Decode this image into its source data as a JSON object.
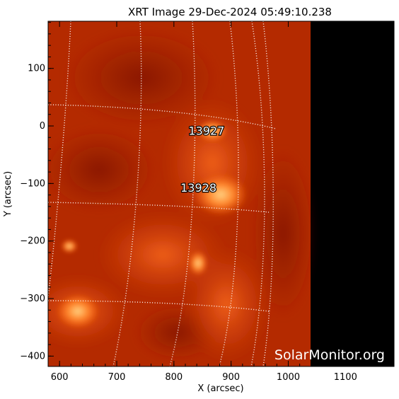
{
  "title": "XRT Image 29-Dec-2024 05:49:10.238",
  "xlabel": "X (arcsec)",
  "ylabel": "Y (arcsec)",
  "xticks": [
    600,
    700,
    800,
    900,
    1000,
    1100
  ],
  "yticks": [
    100,
    0,
    -100,
    -200,
    -300,
    -400
  ],
  "xlim": [
    580,
    1185
  ],
  "ylim": [
    -418,
    182
  ],
  "regions": [
    {
      "number": "13927",
      "x": 857,
      "y": -8
    },
    {
      "number": "13928",
      "x": 843,
      "y": -107
    }
  ],
  "watermark": "SolarMonitor.org",
  "colors": {
    "corona_base": "#b42a00",
    "corona_bright": "#ff9a40",
    "off_disk": "#000000",
    "grid": "#ffffff"
  }
}
